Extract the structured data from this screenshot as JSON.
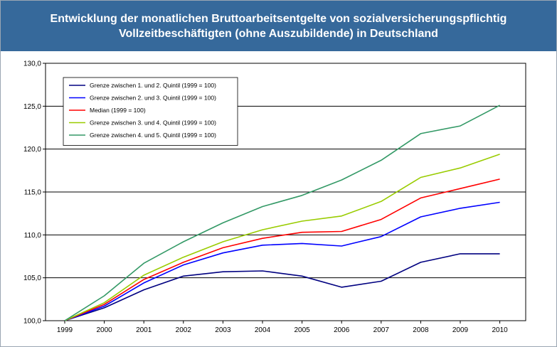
{
  "title_line1": "Entwicklung der monatlichen Bruttoarbeitsentgelte von sozialversicherungspflichtig",
  "title_line2": "Vollzeitbeschäftigten (ohne Auszubildende) in Deutschland",
  "chart_data": {
    "type": "line",
    "title": "Entwicklung der monatlichen Bruttoarbeitsentgelte von sozialversicherungspflichtig Vollzeitbeschäftigten (ohne Auszubildende) in Deutschland",
    "x": [
      "1999",
      "2000",
      "2001",
      "2002",
      "2003",
      "2004",
      "2005",
      "2006",
      "2007",
      "2008",
      "2009",
      "2010"
    ],
    "ylim": [
      100,
      130
    ],
    "yticks": [
      "100,0",
      "105,0",
      "110,0",
      "115,0",
      "120,0",
      "125,0",
      "130,0"
    ],
    "grid": true,
    "legend_position": "top-left",
    "series": [
      {
        "name": "Grenze zwischen 1. und 2. Quintil (1999 = 100)",
        "color": "#000080",
        "values": [
          100,
          101.5,
          103.6,
          105.2,
          105.7,
          105.8,
          105.2,
          103.9,
          104.6,
          106.8,
          107.8,
          107.8
        ]
      },
      {
        "name": "Grenze zwischen 2. und 3. Quintil (1999 = 100)",
        "color": "#0000ff",
        "values": [
          100,
          101.7,
          104.4,
          106.5,
          107.9,
          108.8,
          109.0,
          108.7,
          109.8,
          112.1,
          113.1,
          113.8
        ]
      },
      {
        "name": "Median (1999 = 100)",
        "color": "#ff0000",
        "values": [
          100,
          101.9,
          104.8,
          106.8,
          108.5,
          109.6,
          110.3,
          110.4,
          111.8,
          114.3,
          115.4,
          116.5
        ]
      },
      {
        "name": "Grenze zwischen 3. und 4. Quintil (1999 = 100)",
        "color": "#99cc00",
        "values": [
          100,
          102.1,
          105.3,
          107.4,
          109.2,
          110.6,
          111.6,
          112.2,
          113.9,
          116.7,
          117.8,
          119.4
        ]
      },
      {
        "name": "Grenze zwischen 4. und 5. Quintil (1999 = 100)",
        "color": "#339966",
        "values": [
          100,
          102.9,
          106.7,
          109.2,
          111.4,
          113.3,
          114.6,
          116.4,
          118.7,
          121.8,
          122.7,
          125.1
        ]
      }
    ]
  }
}
